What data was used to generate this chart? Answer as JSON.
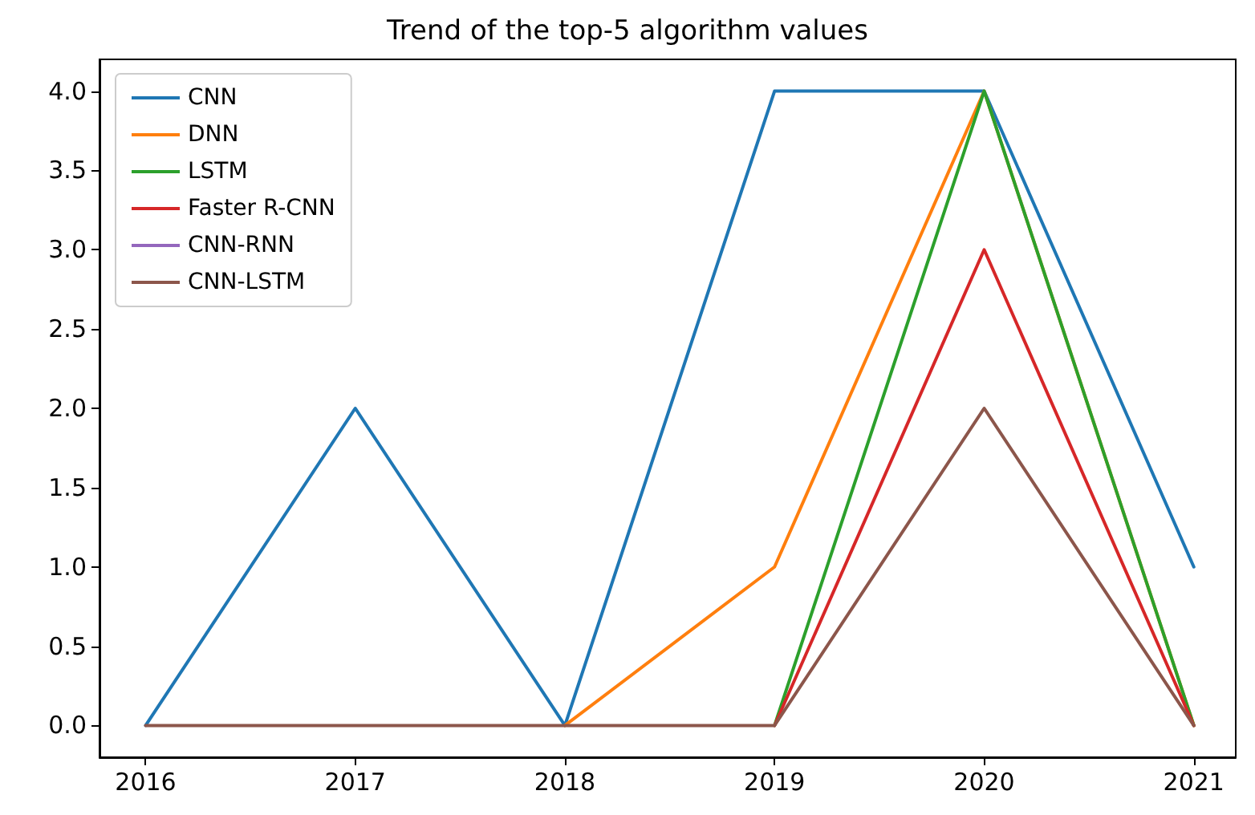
{
  "chart_data": {
    "type": "line",
    "title": "Trend of the top-5 algorithm values",
    "x": [
      2016,
      2017,
      2018,
      2019,
      2020,
      2021
    ],
    "series": [
      {
        "name": "CNN",
        "color": "#1f77b4",
        "values": [
          0,
          2,
          0,
          4,
          4,
          1
        ]
      },
      {
        "name": "DNN",
        "color": "#ff7f0e",
        "values": [
          null,
          null,
          0,
          1,
          4,
          0
        ]
      },
      {
        "name": "LSTM",
        "color": "#2ca02c",
        "values": [
          null,
          null,
          null,
          0,
          4,
          0
        ]
      },
      {
        "name": "Faster R-CNN",
        "color": "#d62728",
        "values": [
          null,
          null,
          null,
          0,
          3,
          0
        ]
      },
      {
        "name": "CNN-RNN",
        "color": "#9467bd",
        "values": [
          null,
          null,
          null,
          null,
          null,
          null
        ]
      },
      {
        "name": "CNN-LSTM",
        "color": "#8c564b",
        "values": [
          0,
          0,
          0,
          0,
          2,
          0
        ]
      }
    ],
    "xlim": [
      2015.78,
      2021.2
    ],
    "xticks": [
      2016,
      2017,
      2018,
      2019,
      2020,
      2021
    ],
    "ylim": [
      -0.2,
      4.2
    ],
    "yticks": [
      {
        "value": 0,
        "label": "0.0"
      },
      {
        "value": 0.5,
        "label": "0.5"
      },
      {
        "value": 1,
        "label": "1.0"
      },
      {
        "value": 1.5,
        "label": "1.5"
      },
      {
        "value": 2,
        "label": "2.0"
      },
      {
        "value": 2.5,
        "label": "2.5"
      },
      {
        "value": 3,
        "label": "3.0"
      },
      {
        "value": 3.5,
        "label": "3.5"
      },
      {
        "value": 4,
        "label": "4.0"
      }
    ],
    "grid": false,
    "legend": "top left",
    "marker": "none",
    "line_style": "solid"
  }
}
